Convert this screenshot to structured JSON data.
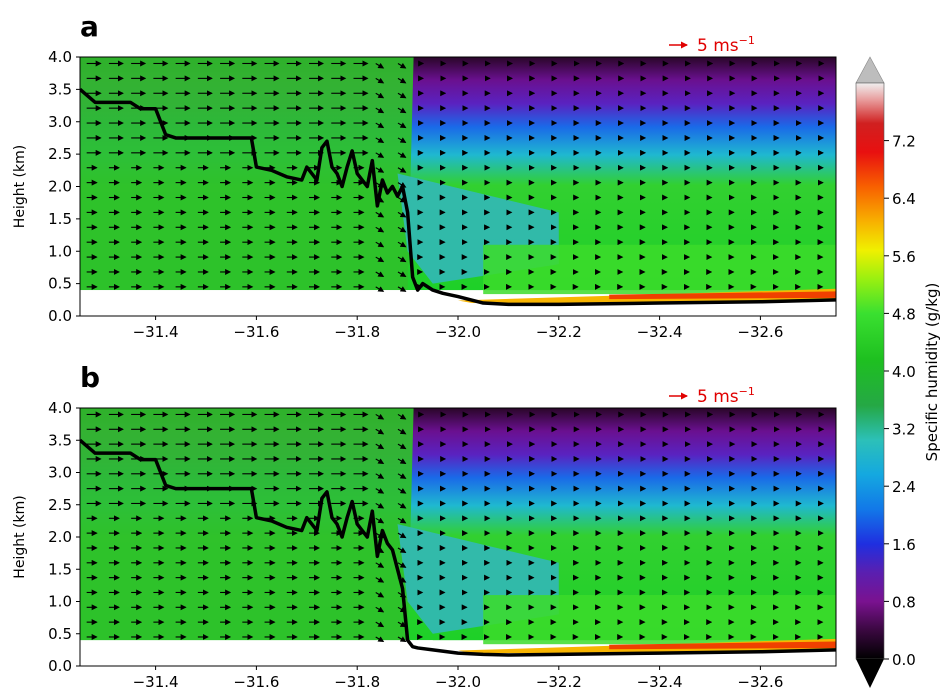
{
  "chart_data": [
    {
      "type": "heatmap",
      "panel_label": "a",
      "ylabel": "Height (km)",
      "xlim": [
        -31.25,
        -32.75
      ],
      "ylim": [
        0.0,
        4.0
      ],
      "xticks": [
        -31.4,
        -31.6,
        -31.8,
        -32.0,
        -32.2,
        -32.4,
        -32.6
      ],
      "yticks": [
        0.0,
        0.5,
        1.0,
        1.5,
        2.0,
        2.5,
        3.0,
        3.5,
        4.0
      ],
      "xtick_labels": [
        "−31.4",
        "−31.6",
        "−31.8",
        "−32.0",
        "−32.2",
        "−32.4",
        "−32.6"
      ],
      "ytick_labels": [
        "0.0",
        "0.5",
        "1.0",
        "1.5",
        "2.0",
        "2.5",
        "3.0",
        "3.5",
        "4.0"
      ],
      "reference_vector": {
        "label": "5 ms",
        "superscript": "−1",
        "speed": 5
      },
      "field_blank_below_km": 0.4,
      "terrain_line": {
        "x": [
          -31.25,
          -31.28,
          -31.3,
          -31.35,
          -31.37,
          -31.4,
          -31.42,
          -31.44,
          -31.5,
          -31.55,
          -31.59,
          -31.6,
          -31.63,
          -31.66,
          -31.69,
          -31.7,
          -31.72,
          -31.73,
          -31.74,
          -31.75,
          -31.76,
          -31.77,
          -31.78,
          -31.79,
          -31.8,
          -31.81,
          -31.82,
          -31.83,
          -31.84,
          -31.85,
          -31.86,
          -31.87,
          -31.88,
          -31.89,
          -31.9,
          -31.91,
          -31.92,
          -31.93,
          -31.95,
          -31.97,
          -32.0,
          -32.05,
          -32.1,
          -32.2,
          -32.4,
          -32.6,
          -32.75
        ],
        "y": [
          3.5,
          3.3,
          3.3,
          3.3,
          3.2,
          3.2,
          2.8,
          2.75,
          2.75,
          2.75,
          2.75,
          2.3,
          2.25,
          2.15,
          2.1,
          2.3,
          2.1,
          2.6,
          2.7,
          2.3,
          2.2,
          2.0,
          2.3,
          2.55,
          2.2,
          2.1,
          2.0,
          2.4,
          1.7,
          2.1,
          1.9,
          2.0,
          1.85,
          2.0,
          1.6,
          0.6,
          0.4,
          0.5,
          0.4,
          0.35,
          0.3,
          0.2,
          0.18,
          0.18,
          0.2,
          0.22,
          0.25
        ]
      }
    },
    {
      "type": "heatmap",
      "panel_label": "b",
      "ylabel": "Height (km)",
      "xlim": [
        -31.25,
        -32.75
      ],
      "ylim": [
        0.0,
        4.0
      ],
      "xticks": [
        -31.4,
        -31.6,
        -31.8,
        -32.0,
        -32.2,
        -32.4,
        -32.6
      ],
      "yticks": [
        0.0,
        0.5,
        1.0,
        1.5,
        2.0,
        2.5,
        3.0,
        3.5,
        4.0
      ],
      "xtick_labels": [
        "−31.4",
        "−31.6",
        "−31.8",
        "−32.0",
        "−32.2",
        "−32.4",
        "−32.6"
      ],
      "ytick_labels": [
        "0.0",
        "0.5",
        "1.0",
        "1.5",
        "2.0",
        "2.5",
        "3.0",
        "3.5",
        "4.0"
      ],
      "reference_vector": {
        "label": "5 ms",
        "superscript": "−1",
        "speed": 5
      },
      "field_blank_below_km": 0.4,
      "terrain_line": {
        "x": [
          -31.25,
          -31.28,
          -31.3,
          -31.35,
          -31.37,
          -31.4,
          -31.42,
          -31.44,
          -31.5,
          -31.55,
          -31.59,
          -31.6,
          -31.63,
          -31.66,
          -31.69,
          -31.7,
          -31.72,
          -31.73,
          -31.74,
          -31.75,
          -31.76,
          -31.77,
          -31.78,
          -31.79,
          -31.8,
          -31.81,
          -31.82,
          -31.83,
          -31.84,
          -31.85,
          -31.86,
          -31.87,
          -31.88,
          -31.89,
          -31.9,
          -31.91,
          -31.92,
          -31.95,
          -32.0,
          -32.05,
          -32.1,
          -32.2,
          -32.4,
          -32.6,
          -32.75
        ],
        "y": [
          3.5,
          3.3,
          3.3,
          3.3,
          3.2,
          3.2,
          2.8,
          2.75,
          2.75,
          2.75,
          2.75,
          2.3,
          2.25,
          2.15,
          2.1,
          2.3,
          2.1,
          2.6,
          2.7,
          2.3,
          2.2,
          2.0,
          2.3,
          2.55,
          2.2,
          2.1,
          2.0,
          2.4,
          1.7,
          2.1,
          1.9,
          1.8,
          1.5,
          1.2,
          0.4,
          0.3,
          0.28,
          0.25,
          0.2,
          0.18,
          0.17,
          0.18,
          0.2,
          0.22,
          0.25
        ]
      }
    }
  ],
  "colorbar": {
    "label": "Specific humidity (g/kg)",
    "range": [
      0.0,
      8.0
    ],
    "ticks": [
      0.0,
      0.8,
      1.6,
      2.4,
      3.2,
      4.0,
      4.8,
      5.6,
      6.4,
      7.2
    ],
    "tick_labels": [
      "0.0",
      "0.8",
      "1.6",
      "2.4",
      "3.2",
      "4.0",
      "4.8",
      "5.6",
      "6.4",
      "7.2"
    ],
    "extend": "both"
  }
}
